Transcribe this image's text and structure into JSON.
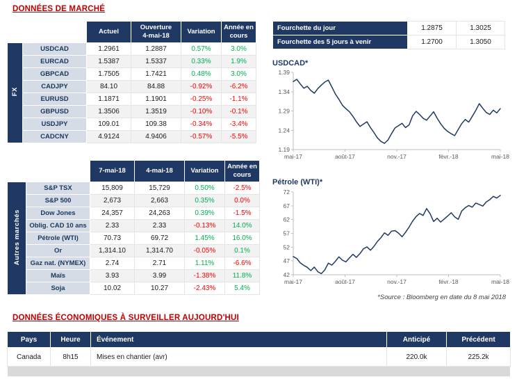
{
  "page": {
    "title": "DONNÉES DE MARCHÉ",
    "econ_title": "DONNÉES ÉCONOMIQUES À SURVEILLER AUJOURD'HUI",
    "source_note": "*Source : Bloomberg en date du  8 mai 2018"
  },
  "colors": {
    "navy": "#1F3864",
    "title_red": "#C00000",
    "positive": "#00B050",
    "negative": "#FF0000",
    "label_bg": "#D6DCE5",
    "stripe": "#F2F2F2"
  },
  "fx_table": {
    "group_label": "FX",
    "headers": [
      "Actuel",
      "Ouverture\n4-mai-18",
      "Variation",
      "Année en\ncours"
    ],
    "rows": [
      {
        "label": "USDCAD",
        "v1": "1.2961",
        "v2": "1.2887",
        "var": "0.57%",
        "var_neg": false,
        "ytd": "3.0%",
        "ytd_neg": false
      },
      {
        "label": "EURCAD",
        "v1": "1.5387",
        "v2": "1.5337",
        "var": "0.33%",
        "var_neg": false,
        "ytd": "1.9%",
        "ytd_neg": false
      },
      {
        "label": "GBPCAD",
        "v1": "1.7505",
        "v2": "1.7421",
        "var": "0.48%",
        "var_neg": false,
        "ytd": "3.0%",
        "ytd_neg": false
      },
      {
        "label": "CADJPY",
        "v1": "84.10",
        "v2": "84.88",
        "var": "-0.92%",
        "var_neg": true,
        "ytd": "-6.2%",
        "ytd_neg": true
      },
      {
        "label": "EURUSD",
        "v1": "1.1871",
        "v2": "1.1901",
        "var": "-0.25%",
        "var_neg": true,
        "ytd": "-1.1%",
        "ytd_neg": true
      },
      {
        "label": "GBPUSD",
        "v1": "1.3506",
        "v2": "1.3519",
        "var": "-0.10%",
        "var_neg": true,
        "ytd": "-0.1%",
        "ytd_neg": true
      },
      {
        "label": "USDJPY",
        "v1": "109.01",
        "v2": "109.38",
        "var": "-0.34%",
        "var_neg": true,
        "ytd": "-3.4%",
        "ytd_neg": true
      },
      {
        "label": "CADCNY",
        "v1": "4.9124",
        "v2": "4.9406",
        "var": "-0.57%",
        "var_neg": true,
        "ytd": "-5.5%",
        "ytd_neg": true
      }
    ]
  },
  "markets_table": {
    "group_label": "Autres marchés",
    "headers": [
      "7-mai-18",
      "4-mai-18",
      "Variation",
      "Année en\ncours"
    ],
    "rows": [
      {
        "label": "S&P TSX",
        "v1": "15,809",
        "v2": "15,729",
        "var": "0.50%",
        "var_neg": false,
        "ytd": "-2.5%",
        "ytd_neg": true
      },
      {
        "label": "S&P 500",
        "v1": "2,673",
        "v2": "2,663",
        "var": "0.35%",
        "var_neg": false,
        "ytd": "0.0%",
        "ytd_neg": true
      },
      {
        "label": "Dow Jones",
        "v1": "24,357",
        "v2": "24,263",
        "var": "0.39%",
        "var_neg": false,
        "ytd": "-1.5%",
        "ytd_neg": true
      },
      {
        "label": "Oblig. CAD 10 ans",
        "v1": "2.33",
        "v2": "2.33",
        "var": "-0.13%",
        "var_neg": true,
        "ytd": "14.0%",
        "ytd_neg": false
      },
      {
        "label": "Pétrole (WTI)",
        "v1": "70.73",
        "v2": "69.72",
        "var": "1.45%",
        "var_neg": false,
        "ytd": "16.0%",
        "ytd_neg": false
      },
      {
        "label": "Or",
        "v1": "1,314.10",
        "v2": "1,314.70",
        "var": "-0.05%",
        "var_neg": true,
        "ytd": "0.1%",
        "ytd_neg": false
      },
      {
        "label": "Gaz nat. (NYMEX)",
        "v1": "2.74",
        "v2": "2.71",
        "var": "1.11%",
        "var_neg": false,
        "ytd": "-6.6%",
        "ytd_neg": true
      },
      {
        "label": "Maïs",
        "v1": "3.93",
        "v2": "3.99",
        "var": "-1.38%",
        "var_neg": true,
        "ytd": "11.8%",
        "ytd_neg": false
      },
      {
        "label": "Soja",
        "v1": "10.02",
        "v2": "10.27",
        "var": "-2.43%",
        "var_neg": true,
        "ytd": "5.4%",
        "ytd_neg": false
      }
    ]
  },
  "range_table": {
    "rows": [
      {
        "label": "Fourchette du jour",
        "low": "1.2875",
        "high": "1.3025"
      },
      {
        "label": "Fourchette des 5 jours à venir",
        "low": "1.2700",
        "high": "1.3050"
      }
    ]
  },
  "econ_table": {
    "headers": [
      "Pays",
      "Heure",
      "Événement",
      "Anticipé",
      "Précédent"
    ],
    "rows": [
      {
        "pays": "Canada",
        "heure": "8h15",
        "evenement": "Mises en chantier (avr)",
        "anticipe": "220.0k",
        "precedent": "225.2k"
      }
    ]
  },
  "chart_data": [
    {
      "type": "line",
      "title": "USDCAD*",
      "xlabel": "",
      "ylabel": "",
      "grid": false,
      "legend": false,
      "x_labels": [
        "mai-17",
        "août-17",
        "nov.-17",
        "févr.-18",
        "mai-18"
      ],
      "ylim": [
        1.19,
        1.39
      ],
      "yticks": [
        "1.19",
        "1.24",
        "1.29",
        "1.34",
        "1.39"
      ],
      "values": [
        1.366,
        1.372,
        1.36,
        1.349,
        1.354,
        1.343,
        1.336,
        1.348,
        1.357,
        1.365,
        1.37,
        1.352,
        1.334,
        1.32,
        1.305,
        1.296,
        1.288,
        1.276,
        1.262,
        1.25,
        1.256,
        1.262,
        1.247,
        1.234,
        1.22,
        1.211,
        1.206,
        1.215,
        1.231,
        1.246,
        1.252,
        1.258,
        1.247,
        1.254,
        1.277,
        1.289,
        1.281,
        1.271,
        1.266,
        1.277,
        1.288,
        1.271,
        1.257,
        1.245,
        1.237,
        1.231,
        1.226,
        1.242,
        1.257,
        1.268,
        1.261,
        1.276,
        1.291,
        1.309,
        1.297,
        1.286,
        1.281,
        1.292,
        1.285,
        1.296
      ]
    },
    {
      "type": "line",
      "title": "Pétrole (WTI)*",
      "xlabel": "",
      "ylabel": "",
      "grid": false,
      "legend": false,
      "x_labels": [
        "mai-17",
        "août-17",
        "nov.-17",
        "févr.-18",
        "mai-18"
      ],
      "ylim": [
        42,
        72
      ],
      "yticks": [
        "42",
        "47",
        "52",
        "57",
        "62",
        "67",
        "72"
      ],
      "values": [
        48.6,
        47.9,
        46.3,
        45.4,
        44.7,
        43.5,
        44.8,
        43.1,
        42.4,
        43.8,
        46.2,
        45.5,
        46.9,
        48.5,
        47.3,
        46.7,
        48.1,
        49.4,
        48.3,
        49.7,
        51.4,
        52.1,
        50.9,
        52.3,
        54.1,
        55.5,
        57.2,
        56.3,
        57.8,
        58.0,
        57.1,
        55.8,
        57.4,
        59.3,
        61.4,
        63.1,
        64.2,
        63.5,
        66.0,
        64.1,
        61.3,
        62.5,
        61.1,
        62.2,
        63.3,
        64.5,
        63.0,
        62.1,
        65.1,
        66.3,
        67.1,
        66.5,
        68.0,
        67.5,
        66.9,
        68.4,
        69.2,
        70.4,
        69.8,
        70.8
      ]
    }
  ]
}
